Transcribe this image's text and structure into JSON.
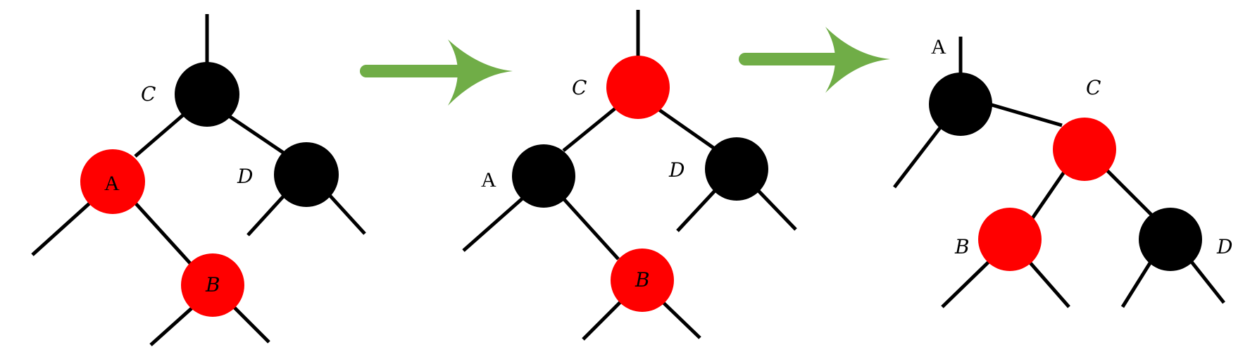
{
  "colors": {
    "red": "#ff0000",
    "black": "#000000",
    "arrow": "#70ad47",
    "edge": "#000000",
    "background": "#ffffff"
  },
  "diagram": {
    "stage1": {
      "nodes": {
        "C": {
          "label": "C",
          "color": "black"
        },
        "A": {
          "label": "A",
          "color": "red"
        },
        "D": {
          "label": "D",
          "color": "black"
        },
        "B": {
          "label": "B",
          "color": "red"
        }
      }
    },
    "stage2": {
      "nodes": {
        "C": {
          "label": "C",
          "color": "red"
        },
        "A": {
          "label": "A",
          "color": "black"
        },
        "D": {
          "label": "D",
          "color": "black"
        },
        "B": {
          "label": "B",
          "color": "red"
        }
      }
    },
    "stage3": {
      "nodes": {
        "A": {
          "label": "A",
          "color": "black"
        },
        "C": {
          "label": "C",
          "color": "red"
        },
        "B": {
          "label": "B",
          "color": "red"
        },
        "D": {
          "label": "D",
          "color": "black"
        }
      }
    },
    "arrows": [
      {
        "from": "stage1",
        "to": "stage2",
        "icon": "right-arrow-icon"
      },
      {
        "from": "stage2",
        "to": "stage3",
        "icon": "right-arrow-icon"
      }
    ]
  }
}
